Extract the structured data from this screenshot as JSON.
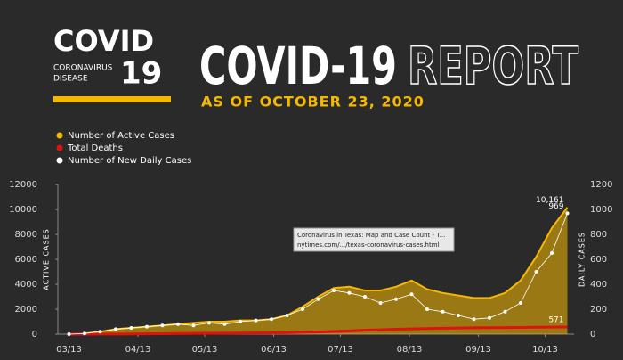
{
  "header": {
    "logo_title": "COVID",
    "logo_number": "19",
    "logo_line_1": "CORONAVIRUS",
    "logo_line_2": "DISEASE",
    "title_1": "COVID-19",
    "title_2": "REPORT",
    "subtitle": "AS OF OCTOBER 23, 2020"
  },
  "tooltip": {
    "title": "Coronavirus in Texas: Map and Case Count - T...",
    "url": "nytimes.com/.../texas-coronavirus-cases.html"
  },
  "chart_data": {
    "type": "line",
    "x": [
      "03/13",
      "03/20",
      "03/27",
      "04/03",
      "04/10",
      "04/17",
      "04/24",
      "05/01",
      "05/08",
      "05/15",
      "05/22",
      "05/29",
      "06/05",
      "06/12",
      "06/19",
      "06/26",
      "07/03",
      "07/10",
      "07/17",
      "07/24",
      "07/31",
      "08/07",
      "08/14",
      "08/21",
      "08/28",
      "09/04",
      "09/11",
      "09/18",
      "09/25",
      "10/02",
      "10/09",
      "10/16",
      "10/23"
    ],
    "xlim": [
      "03/08",
      "10/26"
    ],
    "xticks": [
      "03/13",
      "04/13",
      "05/13",
      "06/13",
      "07/13",
      "08/13",
      "09/13",
      "10/13"
    ],
    "ylim": [
      0,
      12000
    ],
    "yticks": [
      0,
      2000,
      4000,
      6000,
      8000,
      10000,
      12000
    ],
    "ylabel": "ACTIVE CASES",
    "y2lim": [
      0,
      1200
    ],
    "y2ticks": [
      0,
      200,
      400,
      600,
      800,
      1000,
      1200
    ],
    "y2label": "DAILY CASES",
    "series": [
      {
        "name": "Number of Active Cases",
        "kind": "area",
        "color": "#f5b800",
        "values": [
          0,
          50,
          200,
          400,
          500,
          600,
          700,
          800,
          900,
          1000,
          1000,
          1100,
          1100,
          1200,
          1500,
          2200,
          3000,
          3700,
          3800,
          3500,
          3500,
          3800,
          4300,
          3600,
          3300,
          3100,
          2900,
          2900,
          3300,
          4300,
          6200,
          8500,
          10161
        ],
        "value_labels": [
          null,
          null,
          null,
          null,
          null,
          null,
          null,
          null,
          null,
          null,
          null,
          null,
          null,
          null,
          null,
          null,
          null,
          null,
          null,
          null,
          null,
          null,
          null,
          null,
          null,
          null,
          null,
          null,
          null,
          null,
          null,
          null,
          "10,161"
        ]
      },
      {
        "name": "Total Deaths",
        "kind": "line",
        "color": "#e0110f",
        "values": [
          0,
          0,
          5,
          10,
          20,
          30,
          40,
          50,
          60,
          70,
          80,
          90,
          100,
          110,
          120,
          140,
          170,
          210,
          260,
          310,
          350,
          390,
          420,
          450,
          470,
          490,
          510,
          520,
          530,
          540,
          550,
          560,
          571
        ],
        "value_labels": [
          null,
          null,
          null,
          null,
          null,
          null,
          null,
          null,
          null,
          null,
          null,
          null,
          null,
          null,
          null,
          null,
          null,
          null,
          null,
          null,
          null,
          null,
          null,
          null,
          null,
          null,
          null,
          null,
          null,
          null,
          null,
          null,
          "571"
        ]
      },
      {
        "name": "Number of New Daily Cases",
        "kind": "markers",
        "color": "#ffffff",
        "axis": "y2",
        "values": [
          0,
          5,
          20,
          40,
          50,
          60,
          70,
          80,
          70,
          90,
          80,
          100,
          110,
          120,
          150,
          200,
          280,
          350,
          330,
          300,
          250,
          280,
          320,
          200,
          180,
          150,
          120,
          130,
          180,
          250,
          500,
          650,
          969
        ],
        "value_labels": [
          null,
          null,
          null,
          null,
          null,
          null,
          null,
          null,
          null,
          null,
          null,
          null,
          null,
          null,
          null,
          null,
          null,
          null,
          null,
          null,
          null,
          null,
          null,
          null,
          null,
          null,
          null,
          null,
          null,
          null,
          null,
          null,
          "969"
        ]
      }
    ]
  }
}
